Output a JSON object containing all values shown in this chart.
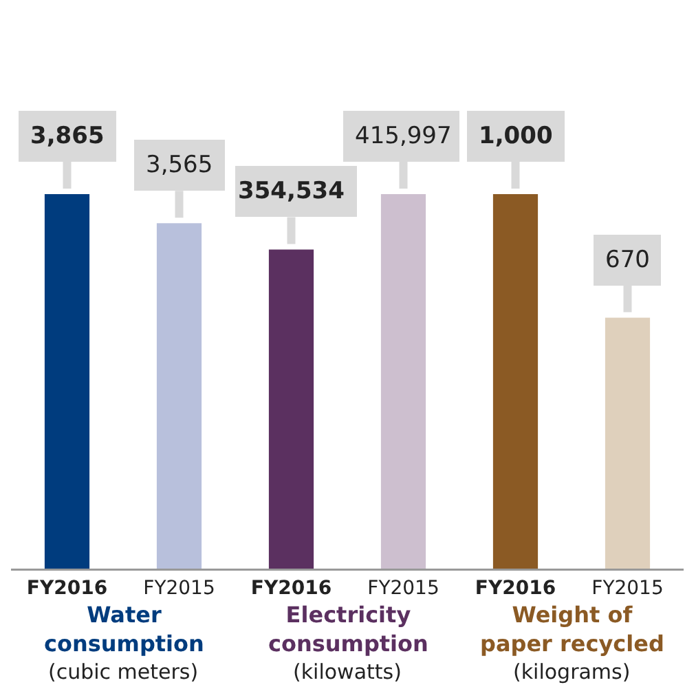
{
  "chart_data": [
    {
      "type": "bar",
      "categories": [
        "FY2016",
        "FY2015"
      ],
      "values": [
        3865,
        3565
      ],
      "value_labels": [
        "3,865",
        "3,565"
      ],
      "colors": [
        "#003c7e",
        "#b8c0dc"
      ],
      "tick_labels": "x",
      "xlabel": "Water consumption",
      "annotations": [
        "(cubic meters)"
      ]
    },
    {
      "type": "bar",
      "categories": [
        "FY2016",
        "FY2015"
      ],
      "values": [
        354534,
        415997
      ],
      "value_labels": [
        "354,534",
        "415,997"
      ],
      "colors": [
        "#5b3060",
        "#cdbfcf"
      ],
      "tick_labels": "x",
      "xlabel": "Electricity consumption",
      "annotations": [
        "(kilowatts)"
      ]
    },
    {
      "type": "bar",
      "categories": [
        "FY2016",
        "FY2015"
      ],
      "values": [
        1000,
        670
      ],
      "value_labels": [
        "1,000",
        "670"
      ],
      "colors": [
        "#8b5a24",
        "#dfd0bc"
      ],
      "tick_labels": "x",
      "xlabel": "Weight of paper recycled",
      "annotations": [
        "(kilograms)"
      ]
    }
  ]
}
